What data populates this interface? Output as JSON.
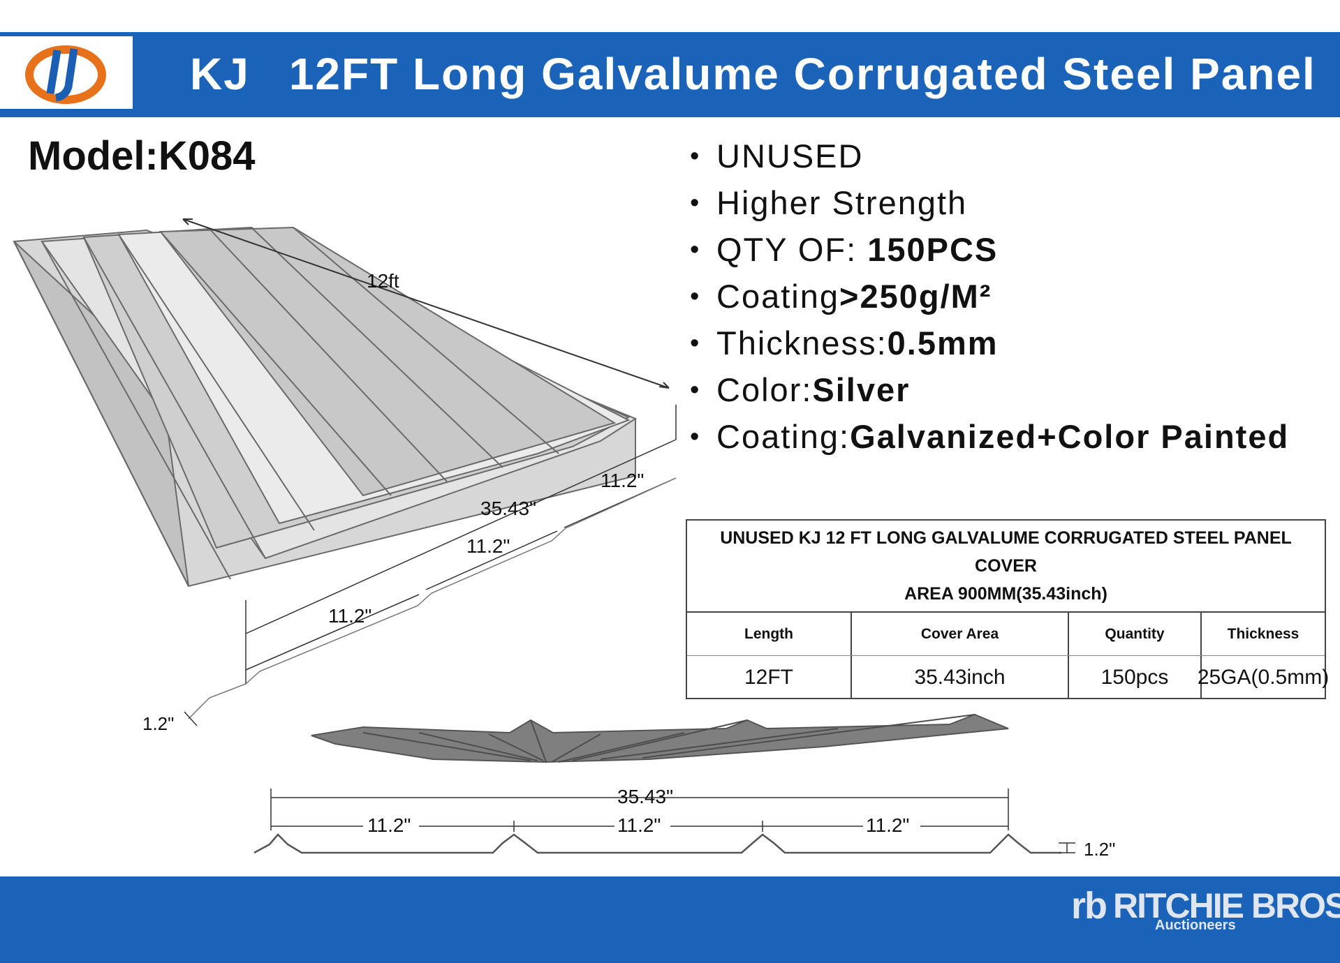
{
  "header": {
    "brand": "KJ",
    "title": "12FT Long Galvalume Corrugated Steel Panel"
  },
  "model": "Model:K084",
  "features": [
    {
      "label": "UNUSED",
      "value": ""
    },
    {
      "label": "Higher Strength",
      "value": ""
    },
    {
      "label": "QTY OF: ",
      "value": "150PCS"
    },
    {
      "label": "Coating",
      "value": ">250g/M²"
    },
    {
      "label": "Thickness:",
      "value": "0.5mm"
    },
    {
      "label": "Color:",
      "value": "Silver"
    },
    {
      "label": "Coating:",
      "value": "Galvanized+Color Painted"
    }
  ],
  "drawing": {
    "length_label": "12ft",
    "total_width": "35.43\"",
    "rib_spacing": "11.2\"",
    "rib_height": "1.2\""
  },
  "spec_table": {
    "caption_line1": "UNUSED KJ 12 FT LONG GALVALUME CORRUGATED STEEL PANEL COVER",
    "caption_line2": "AREA 900MM(35.43inch)",
    "headers": [
      "Length",
      "Cover Area",
      "Quantity",
      "Thickness"
    ],
    "values": [
      "12FT",
      "35.43inch",
      "150pcs",
      "25GA(0.5mm)"
    ]
  },
  "footer": {
    "logo_mark": "rb",
    "logo_text": "RITCHIE BROS.",
    "logo_sub": "Auctioneers"
  },
  "colors": {
    "band": "#1a63b8",
    "logo_orange": "#e8721c",
    "logo_blue": "#1a5fb4",
    "panel_gray": "#bfbfbf"
  }
}
